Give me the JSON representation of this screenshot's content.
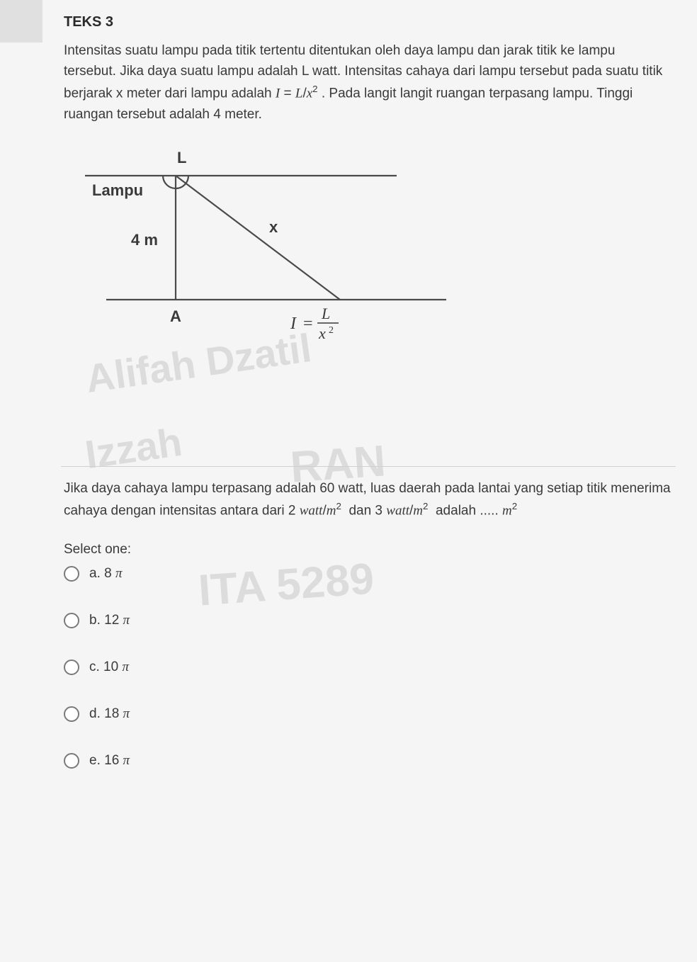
{
  "header": {
    "title": "TEKS 3"
  },
  "intro": {
    "text_html": "Intensitas suatu lampu pada titik tertentu ditentukan oleh daya lampu dan jarak titik ke lampu tersebut. Jika daya suatu lampu adalah L watt. Intensitas cahaya dari lampu tersebut pada suatu titik berjarak x meter dari lampu adalah <span class='math-i'>I</span> = <span class='math-i'>L</span>/<span class='math-i'>x</span><sup>2</sup> . Pada langit langit ruangan terpasang lampu. Tinggi ruangan tersebut adalah 4 meter."
  },
  "diagram": {
    "labels": {
      "L": "L",
      "Lampu": "Lampu",
      "height": "4 m",
      "x": "x",
      "A": "A",
      "formula_html": "<tspan font-style='italic'>I</tspan> = "
    },
    "style": {
      "line_color": "#4a4a4a",
      "line_width": 2.2,
      "font": "Arial",
      "font_bold": "bold",
      "bg": "#f5f5f5"
    }
  },
  "watermarks": {
    "w1": "Alifah Dzatil",
    "w2": "Izzah",
    "w3": "RAN",
    "w4": "ITA 5289"
  },
  "question": {
    "text_html": "Jika daya cahaya lampu terpasang adalah 60 watt, luas daerah pada lantai yang setiap titik menerima cahaya dengan intensitas antara dari 2 <span class='math-i'>watt</span>/<span class='math-i'>m</span><sup>2</sup>&nbsp; dan 3 <span class='math-i'>watt</span>/<span class='math-i'>m</span><sup>2</sup>&nbsp; adalah ..... <span class='math-i'>m</span><sup>2</sup>"
  },
  "select_label": "Select one:",
  "options": [
    {
      "key": "a",
      "label_html": "a. 8 <span class='math-i'>π</span>"
    },
    {
      "key": "b",
      "label_html": "b. 12 <span class='math-i'>π</span>"
    },
    {
      "key": "c",
      "label_html": "c. 10 <span class='math-i'>π</span>"
    },
    {
      "key": "d",
      "label_html": "d. 18 <span class='math-i'>π</span>"
    },
    {
      "key": "e",
      "label_html": "e. 16 <span class='math-i'>π</span>"
    }
  ]
}
